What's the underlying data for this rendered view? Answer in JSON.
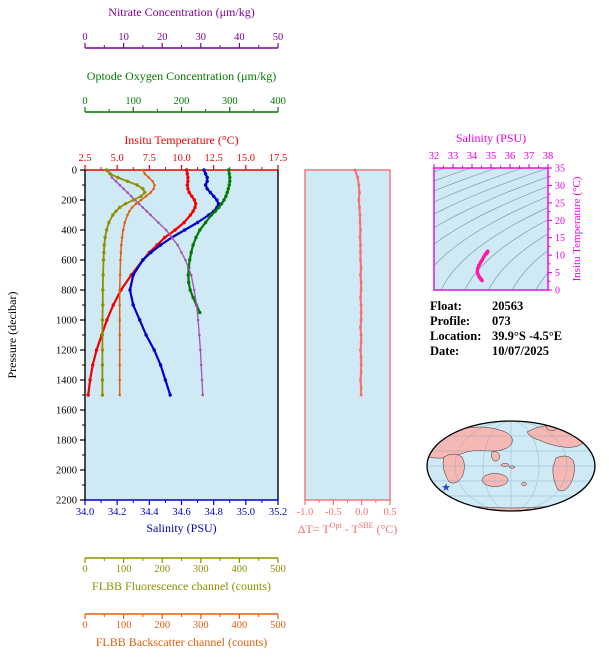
{
  "figure": {
    "background": "#ffffff",
    "panel_bg": "#cfe9f5"
  },
  "info": {
    "rows": [
      {
        "label": "Float:",
        "value": "20563"
      },
      {
        "label": "Profile:",
        "value": "073"
      },
      {
        "label": "Location:",
        "value": "39.9°S -4.5°E"
      },
      {
        "label": "Date:",
        "value": "10/07/2025"
      }
    ]
  },
  "map": {
    "ocean": "#cfe9f5",
    "land": "#f5b8b4",
    "outline": "#000000",
    "marker_char": "★",
    "marker_color": "#2244cc"
  },
  "chart_data": [
    {
      "id": "profile-chart",
      "type": "line",
      "title": "",
      "grid": false,
      "y_axis": {
        "title": "Pressure (decibar)",
        "range": [
          0,
          2200
        ],
        "ticks": [
          0,
          200,
          400,
          600,
          800,
          1000,
          1200,
          1400,
          1600,
          1800,
          2000,
          2200
        ],
        "color": "#000000"
      },
      "x_axes": [
        {
          "id": "nitrate",
          "title": "Nitrate Concentration (μm/kg)",
          "range": [
            0,
            50
          ],
          "ticks": [
            0,
            10,
            20,
            30,
            40,
            50
          ],
          "color": "#8000a0"
        },
        {
          "id": "oxygen",
          "title": "Optode Oxygen Concentration (μm/kg)",
          "range": [
            0,
            400
          ],
          "ticks": [
            0,
            100,
            200,
            300,
            400
          ],
          "color": "#007a00"
        },
        {
          "id": "temperature",
          "title": "Insitu Temperature (°C)",
          "range": [
            2.5,
            17.5
          ],
          "ticks": [
            "2.5",
            "5.0",
            "7.5",
            "10.0",
            "12.5",
            "15.0",
            "17.5"
          ],
          "color": "#f00000"
        },
        {
          "id": "salinity",
          "title": "Salinity (PSU)",
          "range": [
            34.0,
            35.2
          ],
          "ticks": [
            "34.0",
            "34.2",
            "34.4",
            "34.6",
            "34.8",
            "35.0",
            "35.2"
          ],
          "color": "#0000c8"
        },
        {
          "id": "fluorescence",
          "title": "FLBB Fluorescence channel (counts)",
          "range": [
            0,
            500
          ],
          "ticks": [
            0,
            100,
            200,
            300,
            400,
            500
          ],
          "color": "#8f8f00"
        },
        {
          "id": "backscatter",
          "title": "FLBB Backscatter channel (counts)",
          "range": [
            0,
            500
          ],
          "ticks": [
            0,
            100,
            200,
            300,
            400,
            500
          ],
          "color": "#e06010"
        }
      ],
      "series": [
        {
          "name": "Insitu Temperature",
          "axis": "temperature",
          "color": "#f00000",
          "width": 2.2,
          "pressure": [
            0,
            25,
            50,
            75,
            100,
            125,
            150,
            175,
            200,
            225,
            250,
            275,
            300,
            350,
            400,
            450,
            500,
            550,
            600,
            700,
            800,
            900,
            1000,
            1100,
            1200,
            1300,
            1400,
            1500
          ],
          "values": [
            10.4,
            10.45,
            10.5,
            10.5,
            10.45,
            10.5,
            10.6,
            10.8,
            11.0,
            11.1,
            11.05,
            10.9,
            10.7,
            10.2,
            9.5,
            8.7,
            8.1,
            7.5,
            7.0,
            6.1,
            5.3,
            4.7,
            4.2,
            3.8,
            3.4,
            3.1,
            2.9,
            2.75
          ]
        },
        {
          "name": "Salinity",
          "axis": "salinity",
          "color": "#0000c8",
          "width": 2.2,
          "pressure": [
            0,
            25,
            50,
            75,
            100,
            125,
            150,
            175,
            200,
            225,
            250,
            275,
            300,
            350,
            400,
            450,
            500,
            550,
            600,
            700,
            800,
            900,
            1000,
            1100,
            1200,
            1300,
            1400,
            1500
          ],
          "values": [
            34.74,
            34.75,
            34.76,
            34.76,
            34.75,
            34.76,
            34.78,
            34.8,
            34.82,
            34.83,
            34.82,
            34.8,
            34.77,
            34.7,
            34.62,
            34.54,
            34.47,
            34.41,
            34.36,
            34.3,
            34.28,
            34.3,
            34.34,
            34.38,
            34.43,
            34.47,
            34.5,
            34.53
          ]
        },
        {
          "name": "Optode Oxygen",
          "axis": "oxygen",
          "color": "#007a00",
          "width": 2.2,
          "pressure": [
            0,
            25,
            50,
            75,
            100,
            125,
            150,
            175,
            200,
            225,
            250,
            275,
            300,
            350,
            400,
            450,
            500,
            550,
            600,
            650,
            700,
            750,
            800,
            850,
            900,
            950
          ],
          "values": [
            298,
            299,
            300,
            300,
            299,
            297,
            295,
            292,
            288,
            283,
            277,
            270,
            262,
            250,
            238,
            230,
            224,
            220,
            217,
            215,
            214,
            215,
            218,
            224,
            231,
            238
          ]
        },
        {
          "name": "Nitrate",
          "axis": "nitrate",
          "color": "#a353b5",
          "width": 1.3,
          "pressure": [
            0,
            25,
            50,
            75,
            100,
            125,
            150,
            175,
            200,
            225,
            250,
            275,
            300,
            350,
            400,
            450,
            500,
            550,
            600,
            700,
            800,
            900,
            1000,
            1100,
            1200,
            1300,
            1400,
            1500
          ],
          "values": [
            6,
            6.5,
            7,
            8,
            9,
            10,
            11,
            12,
            13,
            14,
            15,
            16,
            17,
            19,
            21,
            22.5,
            24,
            25,
            26,
            27.5,
            28.3,
            28.9,
            29.3,
            29.6,
            29.9,
            30.1,
            30.3,
            30.5
          ]
        },
        {
          "name": "FLBB Fluorescence",
          "axis": "fluorescence",
          "color": "#8f8f00",
          "width": 1.8,
          "pressure": [
            0,
            25,
            50,
            75,
            100,
            125,
            150,
            175,
            200,
            225,
            250,
            275,
            300,
            350,
            400,
            450,
            500,
            550,
            600,
            700,
            800,
            900,
            1000,
            1100,
            1200,
            1300,
            1400,
            1500
          ],
          "values": [
            55,
            65,
            85,
            110,
            135,
            150,
            155,
            145,
            125,
            105,
            90,
            80,
            72,
            62,
            56,
            52,
            50,
            49,
            48,
            47,
            46,
            46,
            45,
            45,
            45,
            45,
            45,
            45
          ]
        },
        {
          "name": "FLBB Backscatter",
          "axis": "backscatter",
          "color": "#e06010",
          "width": 1.5,
          "pressure": [
            0,
            25,
            50,
            75,
            100,
            125,
            150,
            175,
            200,
            225,
            250,
            275,
            300,
            350,
            400,
            450,
            500,
            550,
            600,
            700,
            800,
            900,
            1000,
            1100,
            1200,
            1300,
            1400,
            1500
          ],
          "values": [
            150,
            155,
            165,
            175,
            180,
            178,
            170,
            158,
            145,
            132,
            122,
            115,
            110,
            103,
            99,
            96,
            94,
            93,
            92,
            91,
            90,
            90,
            90,
            90,
            90,
            90,
            90,
            90
          ]
        }
      ]
    },
    {
      "id": "delta-t-chart",
      "type": "line",
      "x_axis": {
        "title_parts": {
          "prefix": "ΔT= T",
          "sup1": "Opt",
          "mid": " - T",
          "sup2": "SBE",
          "suffix": " (°C)"
        },
        "range": [
          -1.0,
          0.5
        ],
        "ticks": [
          "-1.0",
          "-0.5",
          "0.0",
          "0.5"
        ],
        "color": "#f4716f"
      },
      "y_axis": {
        "range": [
          0,
          2200
        ]
      },
      "series": [
        {
          "name": "Delta T",
          "color": "#f4716f",
          "width": 2,
          "pressure": [
            0,
            50,
            100,
            150,
            200,
            250,
            300,
            350,
            400,
            450,
            500,
            550,
            600,
            650,
            700,
            750,
            800,
            850,
            900,
            950,
            1000,
            1050,
            1100,
            1150,
            1200,
            1250,
            1300,
            1350,
            1400,
            1450,
            1500
          ],
          "values": [
            -0.12,
            -0.07,
            -0.05,
            -0.04,
            -0.05,
            -0.04,
            -0.03,
            -0.03,
            -0.02,
            -0.03,
            -0.02,
            -0.02,
            -0.02,
            -0.01,
            -0.02,
            -0.01,
            -0.01,
            -0.02,
            -0.01,
            -0.01,
            -0.01,
            -0.02,
            -0.01,
            -0.01,
            -0.02,
            -0.01,
            -0.01,
            -0.01,
            -0.02,
            -0.01,
            -0.01
          ]
        }
      ]
    },
    {
      "id": "ts-diagram",
      "type": "scatter",
      "x_axis": {
        "title": "Salinity (PSU)",
        "range": [
          32,
          38
        ],
        "ticks": [
          32,
          33,
          34,
          35,
          36,
          37,
          38
        ],
        "color": "#e800e8"
      },
      "y_axis": {
        "title": "Insitu Temperature (°C)",
        "range": [
          0,
          35
        ],
        "ticks": [
          0,
          5,
          10,
          15,
          20,
          25,
          30,
          35
        ],
        "color": "#e800e8"
      },
      "density_contours": [
        18,
        19,
        20,
        21,
        22,
        23,
        24,
        25,
        26,
        27,
        28,
        29,
        30
      ],
      "track": {
        "color": "#ff18a8",
        "salinity": [
          34.74,
          34.75,
          34.76,
          34.76,
          34.75,
          34.76,
          34.78,
          34.8,
          34.82,
          34.83,
          34.82,
          34.8,
          34.77,
          34.7,
          34.62,
          34.54,
          34.47,
          34.41,
          34.36,
          34.3,
          34.28,
          34.3,
          34.34,
          34.38,
          34.43,
          34.47,
          34.5,
          34.53
        ],
        "temperature": [
          10.4,
          10.45,
          10.5,
          10.5,
          10.45,
          10.5,
          10.6,
          10.8,
          11.0,
          11.1,
          11.05,
          10.9,
          10.7,
          10.2,
          9.5,
          8.7,
          8.1,
          7.5,
          7.0,
          6.1,
          5.3,
          4.7,
          4.2,
          3.8,
          3.4,
          3.1,
          2.9,
          2.75
        ]
      }
    }
  ]
}
